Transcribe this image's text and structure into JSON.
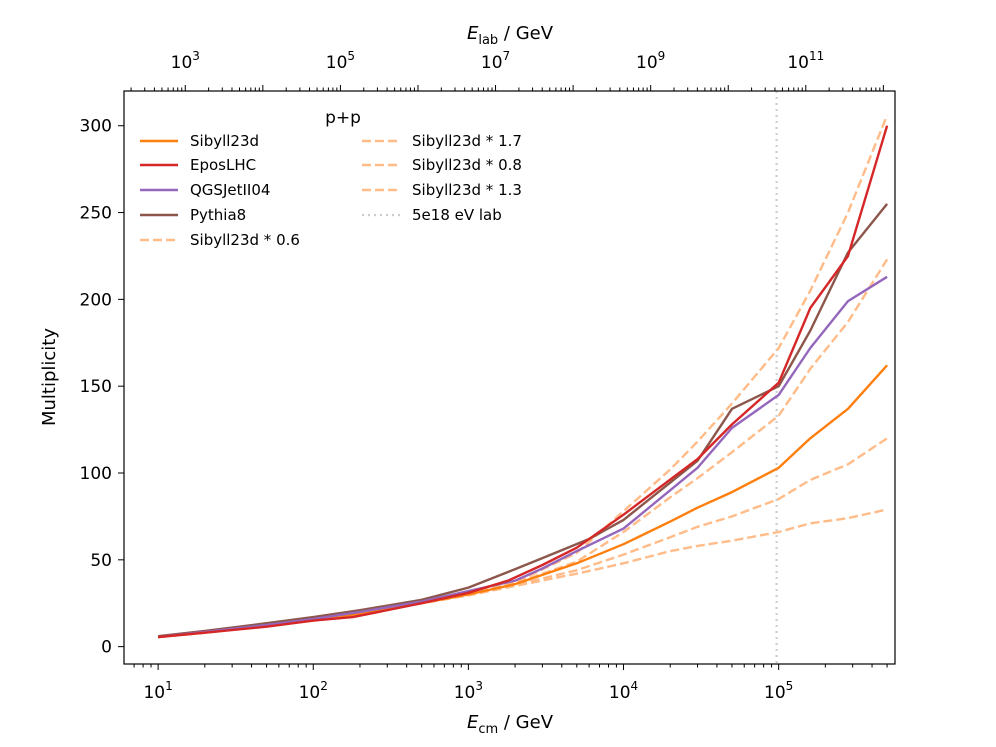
{
  "chart_data": {
    "type": "line",
    "xscale": "log",
    "xlim_log10": [
      0.78,
      5.75
    ],
    "ylim": [
      -10,
      320
    ],
    "xlabel": {
      "main": "E",
      "sub": "cm",
      "unit": " / GeV"
    },
    "ylabel": "Multiplicity",
    "top_axis": {
      "label": {
        "main": "E",
        "sub": "lab",
        "unit": " / GeV"
      },
      "ticks": [
        {
          "exp": "3",
          "ecm_log10": 1.175
        },
        {
          "exp": "5",
          "ecm_log10": 2.175
        },
        {
          "exp": "7",
          "ecm_log10": 3.175
        },
        {
          "exp": "9",
          "ecm_log10": 4.175
        },
        {
          "exp": "11",
          "ecm_log10": 5.175
        }
      ]
    },
    "x_ticks": [
      {
        "exp": "1",
        "value_log10": 1
      },
      {
        "exp": "2",
        "value_log10": 2
      },
      {
        "exp": "3",
        "value_log10": 3
      },
      {
        "exp": "4",
        "value_log10": 4
      },
      {
        "exp": "5",
        "value_log10": 5
      }
    ],
    "y_ticks": [
      0,
      50,
      100,
      150,
      200,
      250,
      300
    ],
    "vline": {
      "x": 97000,
      "label": "5e18 eV lab",
      "color": "#cccccc"
    },
    "legend": {
      "title": "p+p",
      "position": "top-left",
      "columns": 2
    },
    "series": [
      {
        "name": "Sibyll23d",
        "color": "#ff7f0e",
        "style": "solid",
        "x": [
          10,
          20,
          50,
          100,
          200,
          500,
          1000,
          2000,
          5000,
          10000,
          20000,
          30000,
          50000,
          100000,
          160000,
          280000,
          500000
        ],
        "y": [
          5.5,
          8,
          12,
          15,
          19,
          25,
          30,
          36,
          48,
          59,
          72,
          80,
          89,
          103,
          120,
          137,
          162
        ]
      },
      {
        "name": "EposLHC",
        "color": "#d62728",
        "style": "solid",
        "x": [
          10,
          20,
          50,
          100,
          180,
          500,
          1000,
          1800,
          3000,
          5000,
          10000,
          30000,
          50000,
          100000,
          160000,
          280000,
          500000
        ],
        "y": [
          5.5,
          8,
          11.5,
          15,
          17,
          25,
          31,
          38,
          47,
          57,
          76,
          108,
          128,
          152,
          195,
          225,
          300
        ]
      },
      {
        "name": "QGSJetII04",
        "color": "#9467bd",
        "style": "solid",
        "x": [
          10,
          20,
          50,
          100,
          200,
          500,
          1000,
          2000,
          3000,
          5000,
          10000,
          30000,
          50000,
          100000,
          160000,
          280000,
          500000
        ],
        "y": [
          5.5,
          8.5,
          12.5,
          16,
          20,
          26,
          32,
          38,
          45,
          55,
          68,
          103,
          126,
          145,
          172,
          199,
          213
        ]
      },
      {
        "name": "Pythia8",
        "color": "#8c564b",
        "style": "solid",
        "x": [
          10,
          20,
          50,
          100,
          200,
          500,
          1000,
          1800,
          3000,
          6000,
          10000,
          30000,
          50000,
          100000,
          160000,
          280000,
          500000
        ],
        "y": [
          6,
          9,
          13.5,
          17,
          21,
          27,
          34,
          43,
          51,
          62,
          73,
          107,
          137,
          150,
          182,
          227,
          255
        ]
      },
      {
        "name": "Sibyll23d * 0.6",
        "color": "#ffbb88",
        "style": "dashed",
        "x": [
          10,
          20,
          50,
          100,
          200,
          500,
          1000,
          2000,
          5000,
          10000,
          20000,
          30000,
          50000,
          100000,
          160000,
          280000,
          500000
        ],
        "y": [
          5.5,
          8,
          12,
          15,
          19,
          25,
          29.5,
          35,
          42,
          48,
          55,
          58,
          61,
          66,
          71,
          74,
          79
        ]
      },
      {
        "name": "Sibyll23d * 1.7",
        "color": "#ffbb88",
        "style": "dashed",
        "x": [
          10,
          20,
          50,
          100,
          200,
          500,
          1000,
          2000,
          5000,
          10000,
          20000,
          30000,
          50000,
          100000,
          160000,
          280000,
          500000
        ],
        "y": [
          5.5,
          8,
          12,
          15,
          19,
          25,
          30,
          37,
          54,
          78,
          102,
          118,
          140,
          172,
          205,
          250,
          306
        ]
      },
      {
        "name": "Sibyll23d * 0.8",
        "color": "#ffbb88",
        "style": "dashed",
        "x": [
          10,
          20,
          50,
          100,
          200,
          500,
          1000,
          2000,
          5000,
          10000,
          20000,
          30000,
          50000,
          100000,
          160000,
          280000,
          500000
        ],
        "y": [
          5.5,
          8,
          12,
          15,
          19,
          25,
          30,
          35.5,
          44,
          53,
          63,
          69,
          75,
          85,
          96,
          105,
          120
        ]
      },
      {
        "name": "Sibyll23d * 1.3",
        "color": "#ffbb88",
        "style": "dashed",
        "x": [
          10,
          20,
          50,
          100,
          200,
          500,
          1000,
          2000,
          5000,
          10000,
          20000,
          30000,
          50000,
          100000,
          160000,
          280000,
          500000
        ],
        "y": [
          5.5,
          8,
          12,
          15,
          19,
          25,
          30,
          36.5,
          49,
          66,
          86,
          97,
          112,
          133,
          160,
          187,
          223
        ]
      }
    ]
  }
}
